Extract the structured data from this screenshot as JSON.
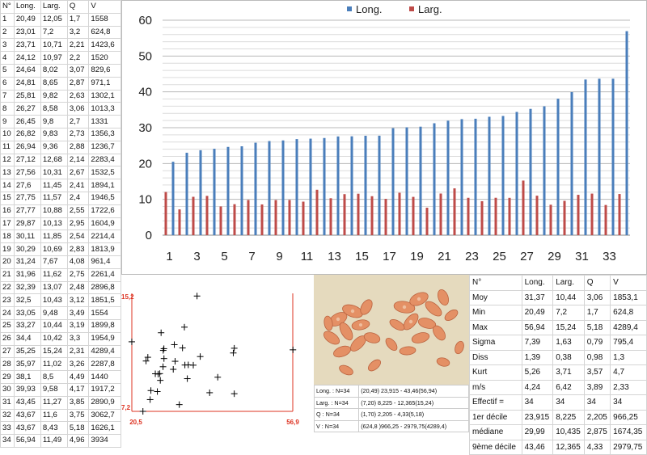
{
  "left_table": {
    "headers": [
      "N°",
      "Long.",
      "Larg.",
      "Q",
      "V"
    ],
    "rows": [
      [
        "1",
        "20,49",
        "12,05",
        "1,7",
        "1558"
      ],
      [
        "2",
        "23,01",
        "7,2",
        "3,2",
        "624,8"
      ],
      [
        "3",
        "23,71",
        "10,71",
        "2,21",
        "1423,6"
      ],
      [
        "4",
        "24,12",
        "10,97",
        "2,2",
        "1520"
      ],
      [
        "5",
        "24,64",
        "8,02",
        "3,07",
        "829,6"
      ],
      [
        "6",
        "24,81",
        "8,65",
        "2,87",
        "971,1"
      ],
      [
        "7",
        "25,81",
        "9,82",
        "2,63",
        "1302,1"
      ],
      [
        "8",
        "26,27",
        "8,58",
        "3,06",
        "1013,3"
      ],
      [
        "9",
        "26,45",
        "9,8",
        "2,7",
        "1331"
      ],
      [
        "10",
        "26,82",
        "9,83",
        "2,73",
        "1356,3"
      ],
      [
        "11",
        "26,94",
        "9,36",
        "2,88",
        "1236,7"
      ],
      [
        "12",
        "27,12",
        "12,68",
        "2,14",
        "2283,4"
      ],
      [
        "13",
        "27,56",
        "10,31",
        "2,67",
        "1532,5"
      ],
      [
        "14",
        "27,6",
        "11,45",
        "2,41",
        "1894,1"
      ],
      [
        "15",
        "27,75",
        "11,57",
        "2,4",
        "1946,5"
      ],
      [
        "16",
        "27,77",
        "10,88",
        "2,55",
        "1722,6"
      ],
      [
        "17",
        "29,87",
        "10,13",
        "2,95",
        "1604,9"
      ],
      [
        "18",
        "30,11",
        "11,85",
        "2,54",
        "2214,4"
      ],
      [
        "19",
        "30,29",
        "10,69",
        "2,83",
        "1813,9"
      ],
      [
        "20",
        "31,24",
        "7,67",
        "4,08",
        "961,4"
      ],
      [
        "21",
        "31,96",
        "11,62",
        "2,75",
        "2261,4"
      ],
      [
        "22",
        "32,39",
        "13,07",
        "2,48",
        "2896,8"
      ],
      [
        "23",
        "32,5",
        "10,43",
        "3,12",
        "1851,5"
      ],
      [
        "24",
        "33,05",
        "9,48",
        "3,49",
        "1554"
      ],
      [
        "25",
        "33,27",
        "10,44",
        "3,19",
        "1899,8"
      ],
      [
        "26",
        "34,4",
        "10,42",
        "3,3",
        "1954,9"
      ],
      [
        "27",
        "35,25",
        "15,24",
        "2,31",
        "4289,4"
      ],
      [
        "28",
        "35,97",
        "11,02",
        "3,26",
        "2287,8"
      ],
      [
        "29",
        "38,1",
        "8,5",
        "4,49",
        "1440"
      ],
      [
        "30",
        "39,93",
        "9,58",
        "4,17",
        "1917,2"
      ],
      [
        "31",
        "43,45",
        "11,27",
        "3,85",
        "2890,9"
      ],
      [
        "32",
        "43,67",
        "11,6",
        "3,75",
        "3062,7"
      ],
      [
        "33",
        "43,67",
        "8,43",
        "5,18",
        "1626,1"
      ],
      [
        "34",
        "56,94",
        "11,49",
        "4,96",
        "3934"
      ]
    ]
  },
  "chart_data": [
    {
      "type": "bar",
      "title": "",
      "xlabel": "",
      "ylabel": "",
      "legend": "top",
      "grid": true,
      "ylim": [
        0,
        60
      ],
      "yticks": [
        "0",
        "10",
        "20",
        "30",
        "40",
        "50",
        "60"
      ],
      "xticks": [
        "1",
        "3",
        "5",
        "7",
        "9",
        "11",
        "13",
        "15",
        "17",
        "19",
        "21",
        "23",
        "25",
        "27",
        "29",
        "31",
        "33"
      ],
      "categories": [
        "1",
        "2",
        "3",
        "4",
        "5",
        "6",
        "7",
        "8",
        "9",
        "10",
        "11",
        "12",
        "13",
        "14",
        "15",
        "16",
        "17",
        "18",
        "19",
        "20",
        "21",
        "22",
        "23",
        "24",
        "25",
        "26",
        "27",
        "28",
        "29",
        "30",
        "31",
        "32",
        "33",
        "34"
      ],
      "series": [
        {
          "name": "Long.",
          "color": "#4a7ebb",
          "values": [
            20.49,
            23.01,
            23.71,
            24.12,
            24.64,
            24.81,
            25.81,
            26.27,
            26.45,
            26.82,
            26.94,
            27.12,
            27.56,
            27.6,
            27.75,
            27.77,
            29.87,
            30.11,
            30.29,
            31.24,
            31.96,
            32.39,
            32.5,
            33.05,
            33.27,
            34.4,
            35.25,
            35.97,
            38.1,
            39.93,
            43.45,
            43.67,
            43.67,
            56.94
          ]
        },
        {
          "name": "Larg.",
          "color": "#be4b48",
          "values": [
            12.05,
            7.2,
            10.71,
            10.97,
            8.02,
            8.65,
            9.82,
            8.58,
            9.8,
            9.83,
            9.36,
            12.68,
            10.31,
            11.45,
            11.57,
            10.88,
            10.13,
            11.85,
            10.69,
            7.67,
            11.62,
            13.07,
            10.43,
            9.48,
            10.44,
            10.42,
            15.24,
            11.02,
            8.5,
            9.58,
            11.27,
            11.6,
            8.43,
            11.49
          ]
        }
      ]
    },
    {
      "type": "scatter",
      "marker": "+",
      "xlim": [
        20.5,
        56.9
      ],
      "ylim": [
        7.2,
        15.2
      ],
      "xticks": [
        "20,5",
        "56,9"
      ],
      "yticks": [
        "7,2",
        "15,2"
      ],
      "x": [
        20.49,
        23.01,
        23.71,
        24.12,
        24.64,
        24.81,
        25.81,
        26.27,
        26.45,
        26.82,
        26.94,
        27.12,
        27.56,
        27.6,
        27.75,
        27.77,
        29.87,
        30.11,
        30.29,
        31.24,
        31.96,
        32.39,
        32.5,
        33.05,
        33.27,
        34.4,
        35.25,
        35.97,
        38.1,
        39.93,
        43.45,
        43.67,
        43.67,
        56.94
      ],
      "y": [
        12.05,
        7.2,
        10.71,
        10.97,
        8.02,
        8.65,
        9.82,
        8.58,
        9.8,
        9.83,
        9.36,
        12.68,
        10.31,
        11.45,
        11.57,
        10.88,
        10.13,
        11.85,
        10.69,
        7.67,
        11.62,
        13.07,
        10.43,
        9.48,
        10.44,
        10.42,
        15.24,
        11.02,
        8.5,
        9.58,
        11.27,
        11.6,
        8.43,
        11.49
      ]
    }
  ],
  "summary_lines": [
    [
      "Long. : N=34",
      "(20,49) 23,915 - 43,46(56,94)"
    ],
    [
      "Larg. : N=34",
      "(7,20) 8,225 - 12,365(15,24)"
    ],
    [
      "Q : N=34",
      "(1,70) 2,205 - 4,33(5,18)"
    ],
    [
      "V : N=34",
      "(624,8 )966,25 - 2979,75(4289,4)"
    ]
  ],
  "stats_table": {
    "headers": [
      "N°",
      "Long.",
      "Larg.",
      "Q",
      "V"
    ],
    "rows": [
      [
        "Moy",
        "31,37",
        "10,44",
        "3,06",
        "1853,1"
      ],
      [
        "Min",
        "20,49",
        "7,2",
        "1,7",
        "624,8"
      ],
      [
        "Max",
        "56,94",
        "15,24",
        "5,18",
        "4289,4"
      ],
      [
        "Sigma",
        "7,39",
        "1,63",
        "0,79",
        "795,4"
      ],
      [
        "Diss",
        "1,39",
        "0,38",
        "0,98",
        "1,3"
      ],
      [
        "Kurt",
        "5,26",
        "3,71",
        "3,57",
        "4,7"
      ],
      [
        "m/s",
        "4,24",
        "6,42",
        "3,89",
        "2,33"
      ],
      [
        "Effectif =",
        "34",
        "34",
        "34",
        "34"
      ],
      [
        "1er décile",
        "23,915",
        "8,225",
        "2,205",
        "966,25"
      ],
      [
        "médiane",
        "29,99",
        "10,435",
        "2,875",
        "1674,35"
      ],
      [
        "9ème décile",
        "43,46",
        "12,365",
        "4,33",
        "2979,75"
      ]
    ]
  }
}
